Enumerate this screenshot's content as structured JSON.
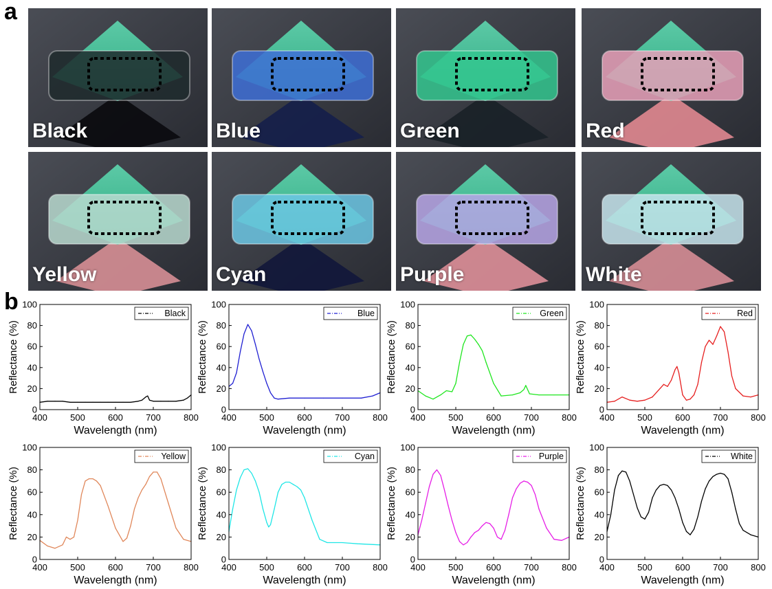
{
  "figure": {
    "panel_a_label": "a",
    "panel_b_label": "b"
  },
  "photos": [
    {
      "label": "Black",
      "film": "#1f2a2d",
      "lower": "#0c0c10"
    },
    {
      "label": "Blue",
      "film": "#3e6fd6",
      "lower": "#16204a"
    },
    {
      "label": "Green",
      "film": "#34c78f",
      "lower": "#1a2228"
    },
    {
      "label": "Red",
      "film": "#e7a0b8",
      "lower": "#d8848c"
    },
    {
      "label": "Yellow",
      "film": "#b9d9cf",
      "lower": "#cf8a90"
    },
    {
      "label": "Cyan",
      "film": "#6cc7e4",
      "lower": "#13183a"
    },
    {
      "label": "Purple",
      "film": "#b7a6e6",
      "lower": "#d58a94"
    },
    {
      "label": "White",
      "film": "#c6e4ec",
      "lower": "#cd8890"
    }
  ],
  "chart_data": [
    {
      "type": "line",
      "legend": "Black",
      "color": "#000000",
      "xlabel": "Wavelength (nm)",
      "ylabel": "Reflectance (%)",
      "xlim": [
        400,
        800
      ],
      "ylim": [
        0,
        100
      ],
      "xticks": [
        400,
        500,
        600,
        700,
        800
      ],
      "yticks": [
        0,
        20,
        40,
        60,
        80,
        100
      ],
      "x": [
        400,
        420,
        440,
        460,
        480,
        500,
        520,
        540,
        560,
        580,
        600,
        620,
        640,
        660,
        670,
        680,
        685,
        690,
        700,
        720,
        740,
        760,
        780,
        790,
        800
      ],
      "y": [
        7,
        8,
        8,
        8,
        7,
        7,
        7,
        7,
        7,
        7,
        7,
        7,
        7,
        8,
        9,
        12,
        13,
        9,
        8,
        8,
        8,
        8,
        9,
        11,
        14
      ]
    },
    {
      "type": "line",
      "legend": "Blue",
      "color": "#1f1fd2",
      "xlabel": "Wavelength (nm)",
      "ylabel": "Reflectance (%)",
      "xlim": [
        400,
        800
      ],
      "ylim": [
        0,
        100
      ],
      "xticks": [
        400,
        500,
        600,
        700,
        800
      ],
      "yticks": [
        0,
        20,
        40,
        60,
        80,
        100
      ],
      "x": [
        400,
        410,
        420,
        430,
        440,
        450,
        460,
        470,
        480,
        490,
        500,
        510,
        520,
        530,
        560,
        600,
        650,
        700,
        750,
        780,
        800
      ],
      "y": [
        22,
        25,
        35,
        55,
        72,
        81,
        75,
        62,
        48,
        36,
        25,
        16,
        11,
        10,
        11,
        11,
        11,
        11,
        11,
        13,
        16
      ]
    },
    {
      "type": "line",
      "legend": "Green",
      "color": "#1ee61e",
      "xlabel": "Wavelength (nm)",
      "ylabel": "Reflectance (%)",
      "xlim": [
        400,
        800
      ],
      "ylim": [
        0,
        100
      ],
      "xticks": [
        400,
        500,
        600,
        700,
        800
      ],
      "yticks": [
        0,
        20,
        40,
        60,
        80,
        100
      ],
      "x": [
        400,
        420,
        440,
        460,
        475,
        490,
        500,
        510,
        520,
        530,
        540,
        550,
        560,
        570,
        580,
        600,
        620,
        650,
        670,
        680,
        685,
        695,
        720,
        760,
        800
      ],
      "y": [
        18,
        13,
        10,
        14,
        18,
        17,
        25,
        45,
        62,
        70,
        71,
        67,
        62,
        56,
        45,
        25,
        13,
        14,
        16,
        19,
        23,
        15,
        14,
        14,
        14
      ]
    },
    {
      "type": "line",
      "legend": "Red",
      "color": "#e61e1e",
      "xlabel": "Wavelength (nm)",
      "ylabel": "Reflectance (%)",
      "xlim": [
        400,
        800
      ],
      "ylim": [
        0,
        100
      ],
      "xticks": [
        400,
        500,
        600,
        700,
        800
      ],
      "yticks": [
        0,
        20,
        40,
        60,
        80,
        100
      ],
      "x": [
        400,
        420,
        440,
        460,
        480,
        500,
        520,
        540,
        550,
        560,
        570,
        580,
        585,
        590,
        600,
        610,
        620,
        630,
        640,
        650,
        660,
        670,
        680,
        690,
        700,
        710,
        720,
        730,
        740,
        760,
        780,
        800
      ],
      "y": [
        7,
        8,
        12,
        9,
        8,
        9,
        12,
        20,
        24,
        22,
        28,
        38,
        41,
        35,
        14,
        9,
        10,
        14,
        24,
        45,
        60,
        66,
        62,
        70,
        79,
        74,
        55,
        32,
        20,
        13,
        12,
        14
      ]
    },
    {
      "type": "line",
      "legend": "Yellow",
      "color": "#e0875a",
      "xlabel": "Wavelength (nm)",
      "ylabel": "Reflectance (%)",
      "xlim": [
        400,
        800
      ],
      "ylim": [
        0,
        100
      ],
      "xticks": [
        400,
        500,
        600,
        700,
        800
      ],
      "yticks": [
        0,
        20,
        40,
        60,
        80,
        100
      ],
      "x": [
        400,
        420,
        440,
        460,
        470,
        480,
        490,
        500,
        510,
        520,
        530,
        540,
        550,
        560,
        580,
        600,
        620,
        630,
        640,
        650,
        660,
        670,
        680,
        690,
        700,
        710,
        720,
        740,
        760,
        780,
        800
      ],
      "y": [
        17,
        12,
        10,
        13,
        20,
        18,
        20,
        35,
        58,
        70,
        72,
        72,
        70,
        66,
        48,
        28,
        16,
        19,
        30,
        45,
        55,
        62,
        67,
        74,
        78,
        78,
        72,
        50,
        28,
        18,
        16
      ]
    },
    {
      "type": "line",
      "legend": "Cyan",
      "color": "#1ee6e6",
      "xlabel": "Wavelength (nm)",
      "ylabel": "Reflectance (%)",
      "xlim": [
        400,
        800
      ],
      "ylim": [
        0,
        100
      ],
      "xticks": [
        400,
        500,
        600,
        700,
        800
      ],
      "yticks": [
        0,
        20,
        40,
        60,
        80,
        100
      ],
      "x": [
        400,
        410,
        420,
        430,
        440,
        450,
        460,
        470,
        480,
        490,
        500,
        505,
        510,
        520,
        530,
        540,
        550,
        560,
        570,
        580,
        590,
        600,
        620,
        640,
        660,
        680,
        700,
        740,
        800
      ],
      "y": [
        25,
        45,
        62,
        73,
        80,
        81,
        77,
        70,
        60,
        45,
        33,
        29,
        31,
        45,
        60,
        67,
        69,
        69,
        67,
        65,
        62,
        55,
        35,
        18,
        15,
        15,
        15,
        14,
        13
      ]
    },
    {
      "type": "line",
      "legend": "Purple",
      "color": "#e61ee6",
      "xlabel": "Wavelength (nm)",
      "ylabel": "Reflectance (%)",
      "xlim": [
        400,
        800
      ],
      "ylim": [
        0,
        100
      ],
      "xticks": [
        400,
        500,
        600,
        700,
        800
      ],
      "yticks": [
        0,
        20,
        40,
        60,
        80,
        100
      ],
      "x": [
        400,
        410,
        420,
        430,
        440,
        450,
        460,
        470,
        480,
        490,
        500,
        510,
        520,
        530,
        540,
        550,
        560,
        570,
        580,
        590,
        600,
        610,
        620,
        630,
        640,
        650,
        660,
        670,
        680,
        690,
        700,
        710,
        720,
        740,
        760,
        780,
        800
      ],
      "y": [
        22,
        35,
        50,
        65,
        76,
        80,
        75,
        62,
        48,
        35,
        24,
        16,
        13,
        15,
        20,
        24,
        26,
        30,
        33,
        32,
        28,
        20,
        18,
        26,
        40,
        55,
        63,
        68,
        70,
        69,
        66,
        58,
        45,
        28,
        18,
        17,
        20
      ]
    },
    {
      "type": "line",
      "legend": "White",
      "color": "#000000",
      "xlabel": "Wavelength (nm)",
      "ylabel": "Reflectance (%)",
      "xlim": [
        400,
        800
      ],
      "ylim": [
        0,
        100
      ],
      "xticks": [
        400,
        500,
        600,
        700,
        800
      ],
      "yticks": [
        0,
        20,
        40,
        60,
        80,
        100
      ],
      "x": [
        400,
        410,
        420,
        430,
        440,
        450,
        460,
        470,
        480,
        490,
        500,
        510,
        520,
        530,
        540,
        550,
        560,
        570,
        580,
        590,
        600,
        610,
        620,
        630,
        640,
        650,
        660,
        670,
        680,
        690,
        700,
        710,
        720,
        730,
        740,
        750,
        760,
        780,
        800
      ],
      "y": [
        25,
        40,
        62,
        75,
        79,
        78,
        70,
        58,
        46,
        38,
        36,
        42,
        55,
        62,
        66,
        67,
        66,
        62,
        55,
        45,
        33,
        25,
        22,
        27,
        38,
        52,
        63,
        70,
        74,
        76,
        77,
        76,
        72,
        60,
        45,
        32,
        26,
        22,
        20
      ]
    }
  ]
}
